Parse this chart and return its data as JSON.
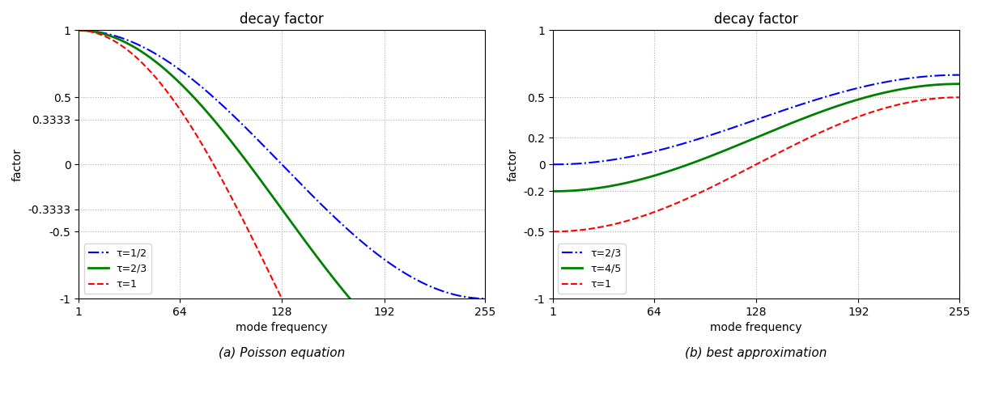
{
  "N": 255,
  "title": "decay factor",
  "xlabel": "mode frequency",
  "ylabel": "factor",
  "xlim": [
    1,
    255
  ],
  "ylim": [
    -1,
    1
  ],
  "xticks": [
    1,
    64,
    128,
    192,
    255
  ],
  "yticks_left": [
    -1,
    -0.5,
    -0.3333,
    0,
    0.3333,
    0.5,
    1
  ],
  "ytick_labels_left": [
    "-1",
    "-0.5",
    "-0.3333",
    "0",
    "0.3333",
    "0.5",
    "1"
  ],
  "yticks_right": [
    -1,
    -0.5,
    -0.2,
    0,
    0.2,
    0.5,
    1
  ],
  "ytick_labels_right": [
    "-1",
    "-0.5",
    "-0.2",
    "0",
    "0.2",
    "0.5",
    "1"
  ],
  "subplot_a_title": "(a) Poisson equation",
  "subplot_b_title": "(b) best approximation",
  "left_curves": [
    {
      "tau": 0.5,
      "label": "τ=1/2",
      "color": "#0000ff",
      "linestyle": "dashdot",
      "linewidth": 1.5
    },
    {
      "tau": 0.6667,
      "label": "τ=2/3",
      "color": "#008000",
      "linestyle": "solid",
      "linewidth": 2.0
    },
    {
      "tau": 1.0,
      "label": "τ=1",
      "color": "#ff0000",
      "linestyle": "dashed",
      "linewidth": 1.5
    }
  ],
  "right_curves": [
    {
      "tau": 0.6667,
      "label": "τ=2/3",
      "color": "#0000ff",
      "linestyle": "dashdot",
      "linewidth": 1.5
    },
    {
      "tau": 0.8,
      "label": "τ=4/5",
      "color": "#008000",
      "linestyle": "solid",
      "linewidth": 2.0
    },
    {
      "tau": 1.0,
      "label": "τ=1",
      "color": "#ff0000",
      "linestyle": "dashed",
      "linewidth": 1.5
    }
  ],
  "background_color": "#ffffff",
  "grid_color": "#b0b0b0",
  "legend_loc": "lower left",
  "legend_fontsize": 9
}
